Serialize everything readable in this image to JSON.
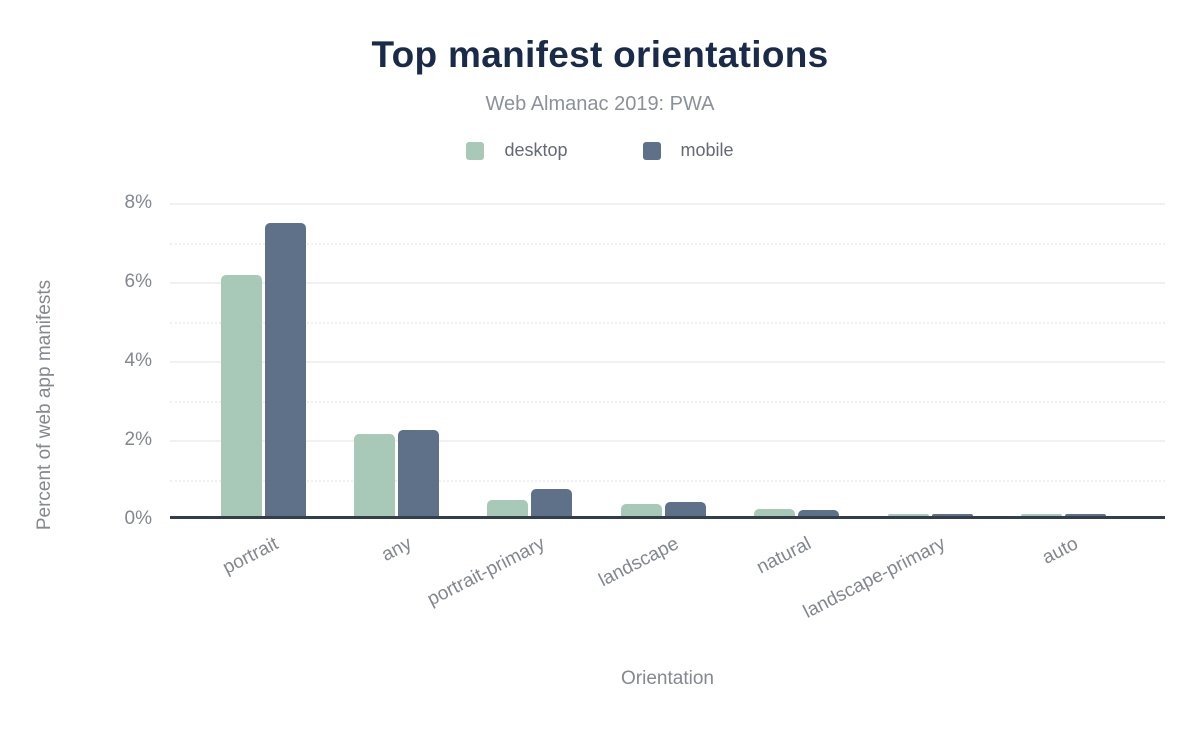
{
  "chart_data": {
    "type": "bar",
    "title": "Top manifest orientations",
    "subtitle": "Web Almanac 2019: PWA",
    "xlabel": "Orientation",
    "ylabel": "Percent of web app manifests",
    "categories": [
      "portrait",
      "any",
      "portrait-primary",
      "landscape",
      "natural",
      "landscape-primary",
      "auto"
    ],
    "series": [
      {
        "name": "desktop",
        "color": "#a8c8b8",
        "values": [
          6.15,
          2.1,
          0.4,
          0.3,
          0.17,
          0.05,
          0.04
        ]
      },
      {
        "name": "mobile",
        "color": "#5f7189",
        "values": [
          7.5,
          2.2,
          0.7,
          0.35,
          0.15,
          0.05,
          0.04
        ]
      }
    ],
    "ylim": [
      0,
      8
    ],
    "ymax": 8,
    "yticks": [
      "0%",
      "2%",
      "4%",
      "6%",
      "8%"
    ],
    "ytick_values": [
      0,
      2,
      4,
      6,
      8
    ],
    "minor_tick_values": [
      1,
      3,
      5,
      7
    ],
    "grid": "on",
    "legend_position": "top"
  },
  "colors": {
    "title": "#1a2b4a",
    "subtitle": "#8b9198",
    "legend_text": "#646a73",
    "tick_text": "#82878f",
    "axis_title_text": "#84898f",
    "axis_line": "#333e4c",
    "grid_major": "#f1f1f3",
    "grid_minor": "#f0f0f2",
    "desktop": "#a8c8b8",
    "mobile": "#5f7189"
  }
}
